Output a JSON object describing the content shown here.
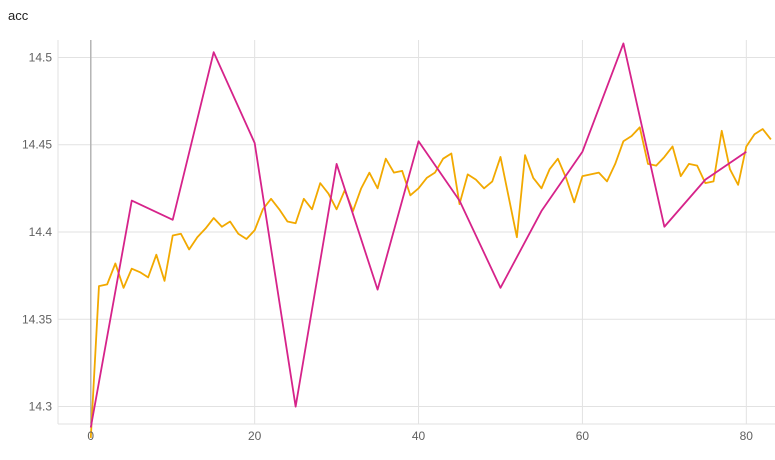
{
  "chart_data": {
    "type": "line",
    "title": "acc",
    "xlabel": "",
    "ylabel": "",
    "xlim": [
      -4,
      83.5
    ],
    "ylim": [
      14.29,
      14.51
    ],
    "x_ticks": [
      0,
      20,
      40,
      60,
      80
    ],
    "y_ticks": [
      14.3,
      14.35,
      14.4,
      14.45,
      14.5
    ],
    "grid": true,
    "colors": [
      "#f2a900",
      "#d6238a"
    ],
    "series": [
      {
        "x": [
          0,
          1,
          2,
          3,
          4,
          5,
          6,
          7,
          8,
          9,
          10,
          11,
          12,
          13,
          14,
          15,
          16,
          17,
          18,
          19,
          20,
          21,
          22,
          23,
          24,
          25,
          26,
          27,
          28,
          29,
          30,
          31,
          32,
          33,
          34,
          35,
          36,
          37,
          38,
          39,
          40,
          41,
          42,
          43,
          44,
          45,
          46,
          47,
          48,
          49,
          50,
          51,
          52,
          53,
          54,
          55,
          56,
          57,
          58,
          59,
          60,
          61,
          62,
          63,
          64,
          65,
          66,
          67,
          68,
          69,
          70,
          71,
          72,
          73,
          74,
          75,
          76,
          77,
          78,
          79,
          80,
          81,
          82,
          83
        ],
        "values": [
          14.282,
          14.369,
          14.37,
          14.382,
          14.368,
          14.379,
          14.377,
          14.374,
          14.387,
          14.372,
          14.398,
          14.399,
          14.39,
          14.397,
          14.402,
          14.408,
          14.403,
          14.406,
          14.399,
          14.396,
          14.401,
          14.413,
          14.419,
          14.413,
          14.406,
          14.405,
          14.419,
          14.413,
          14.428,
          14.422,
          14.413,
          14.424,
          14.412,
          14.425,
          14.434,
          14.425,
          14.442,
          14.434,
          14.435,
          14.421,
          14.425,
          14.431,
          14.434,
          14.442,
          14.445,
          14.416,
          14.433,
          14.43,
          14.425,
          14.429,
          14.443,
          14.42,
          14.397,
          14.444,
          14.431,
          14.425,
          14.436,
          14.442,
          14.431,
          14.417,
          14.432,
          14.433,
          14.434,
          14.429,
          14.439,
          14.452,
          14.455,
          14.46,
          14.439,
          14.438,
          14.443,
          14.449,
          14.432,
          14.439,
          14.438,
          14.428,
          14.429,
          14.458,
          14.436,
          14.427,
          14.449,
          14.456,
          14.459,
          14.453
        ]
      },
      {
        "x": [
          0,
          5,
          10,
          15,
          20,
          25,
          30,
          35,
          40,
          45,
          50,
          55,
          60,
          65,
          70,
          75,
          80
        ],
        "values": [
          14.288,
          14.418,
          14.407,
          14.503,
          14.451,
          14.3,
          14.439,
          14.367,
          14.452,
          14.418,
          14.368,
          14.412,
          14.446,
          14.508,
          14.403,
          14.43,
          14.446
        ]
      }
    ]
  }
}
